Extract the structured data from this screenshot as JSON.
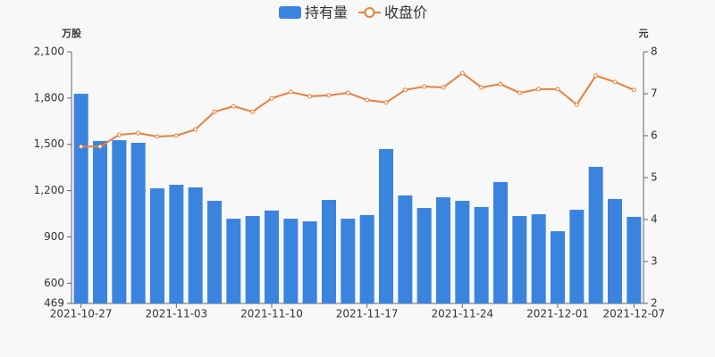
{
  "chart_data": {
    "type": "bar",
    "y_label": "万股",
    "y2_label": "元",
    "categories": [
      "2021-10-27",
      null,
      null,
      null,
      null,
      "2021-11-03",
      null,
      null,
      null,
      null,
      "2021-11-10",
      null,
      null,
      null,
      null,
      "2021-11-17",
      null,
      null,
      null,
      null,
      "2021-11-24",
      null,
      null,
      null,
      null,
      "2021-12-01",
      null,
      null,
      null,
      "2021-12-07"
    ],
    "series": [
      {
        "name": "持有量",
        "type": "bar",
        "color": "#3a84e0",
        "values": [
          1828,
          1522,
          1527,
          1510,
          1215,
          1238,
          1221,
          1134,
          1018,
          1036,
          1071,
          1018,
          1001,
          1140,
          1018,
          1042,
          1470,
          1169,
          1088,
          1157,
          1134,
          1094,
          1256,
          1036,
          1047,
          937,
          1076,
          1354,
          1146,
          1030
        ]
      },
      {
        "name": "收盘价",
        "type": "line",
        "axis": "y2",
        "color": "#e8803a",
        "values": [
          5.74,
          5.74,
          6.02,
          6.06,
          5.98,
          6.0,
          6.15,
          6.57,
          6.7,
          6.57,
          6.89,
          7.04,
          6.94,
          6.96,
          7.02,
          6.85,
          6.79,
          7.09,
          7.17,
          7.15,
          7.49,
          7.15,
          7.23,
          7.02,
          7.11,
          7.11,
          6.74,
          7.43,
          7.28,
          7.09
        ]
      }
    ],
    "ylim": [
      469,
      2100
    ],
    "yticks": [
      469,
      600,
      900,
      {
        "value": 1200,
        "label": "1,200"
      },
      {
        "value": 1500,
        "label": "1,500"
      },
      {
        "value": 1800,
        "label": "1,800"
      },
      {
        "value": 2100,
        "label": "2,100"
      }
    ],
    "y2lim": [
      2,
      8
    ],
    "y2ticks": [
      2,
      3,
      4,
      5,
      6,
      7,
      8
    ]
  }
}
